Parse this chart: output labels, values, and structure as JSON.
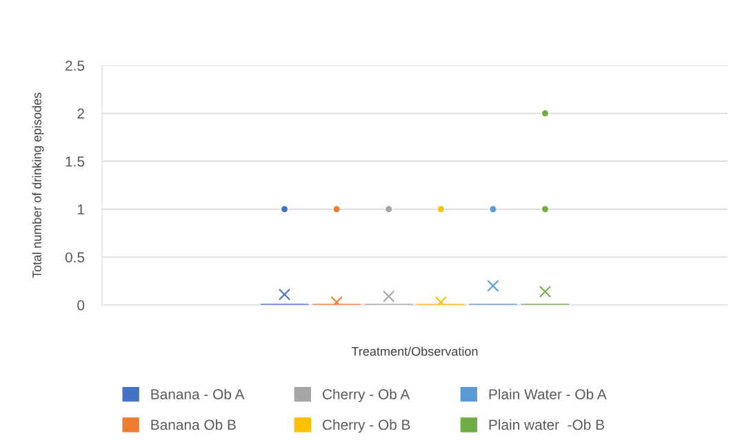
{
  "chart_data": {
    "type": "box",
    "xlabel": "Treatment/Observation",
    "ylabel": "Total number of drinking episodes",
    "categories": [
      null
    ],
    "series": [
      {
        "name": "Banana - Ob A",
        "color": "#4472c4",
        "boxes": [
          {
            "low": 0,
            "q1": 0,
            "median": 0,
            "q3": 0,
            "high": 0,
            "mean": 0.11,
            "outliers": [
              1
            ]
          }
        ]
      },
      {
        "name": "Banana Ob B",
        "color": "#ed7d31",
        "boxes": [
          {
            "low": 0,
            "q1": 0,
            "median": 0,
            "q3": 0,
            "high": 0,
            "mean": 0.03,
            "outliers": [
              1
            ]
          }
        ]
      },
      {
        "name": "Cherry - Ob A",
        "color": "#a5a5a5",
        "boxes": [
          {
            "low": 0,
            "q1": 0,
            "median": 0,
            "q3": 0,
            "high": 0,
            "mean": 0.09,
            "outliers": [
              1
            ]
          }
        ]
      },
      {
        "name": "Cherry - Ob B",
        "color": "#ffc000",
        "boxes": [
          {
            "low": 0,
            "q1": 0,
            "median": 0,
            "q3": 0,
            "high": 0,
            "mean": 0.03,
            "outliers": [
              1
            ]
          }
        ]
      },
      {
        "name": "Plain Water - Ob A",
        "color": "#5b9bd5",
        "boxes": [
          {
            "low": 0,
            "q1": 0,
            "median": 0,
            "q3": 0,
            "high": 0,
            "mean": 0.2,
            "outliers": [
              1
            ]
          }
        ]
      },
      {
        "name": "Plain water  -Ob B",
        "color": "#70ad47",
        "boxes": [
          {
            "low": 0,
            "q1": 0,
            "median": 0,
            "q3": 0,
            "high": 0,
            "mean": 0.14,
            "outliers": [
              1,
              2
            ]
          }
        ]
      }
    ],
    "ylim": [
      0,
      2.5
    ],
    "yticks": [
      0,
      0.5,
      1,
      1.5,
      2,
      2.5
    ],
    "grid": "y",
    "legend": "bottom"
  }
}
